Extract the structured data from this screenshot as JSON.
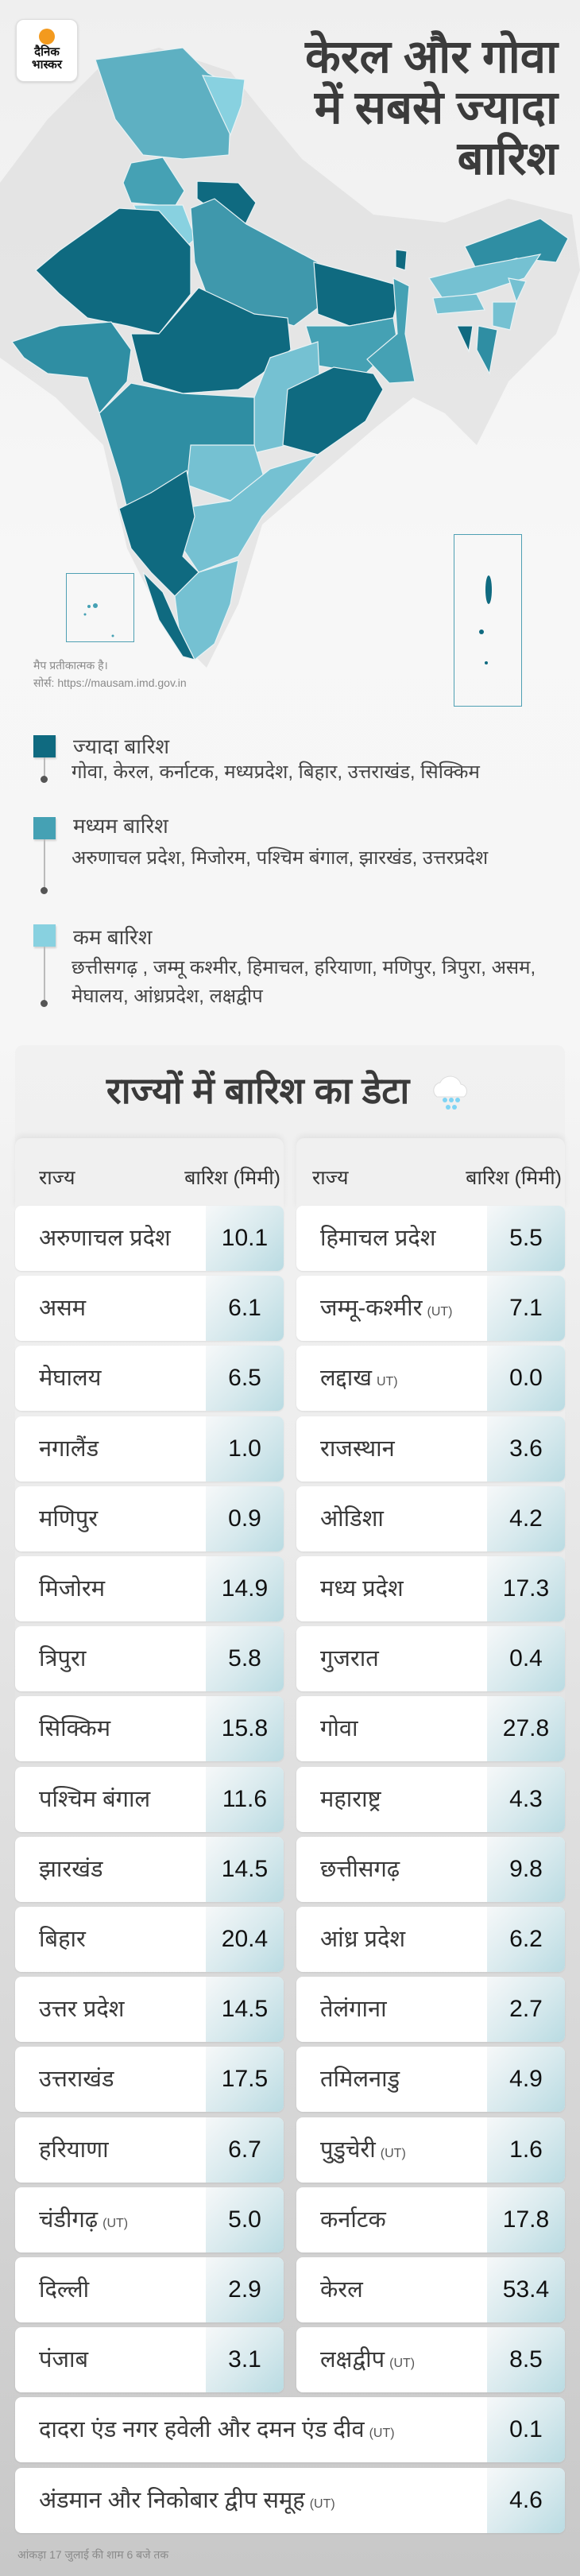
{
  "brand": {
    "line1": "दैनिक",
    "line2": "भास्कर",
    "accent": "#f39a1e"
  },
  "headline": [
    "केरल और गोवा",
    "में सबसे ज्यादा",
    "बारिश"
  ],
  "map": {
    "note": "मैप प्रतीकात्मक है।",
    "source": "सोर्स: https://mausam.imd.gov.in",
    "colors": {
      "high": "#0f6a80",
      "medium": "#45a1b4",
      "low": "#88d1e0"
    }
  },
  "legend": [
    {
      "title": "ज्यादा बारिश",
      "states": "गोवा, केरल, कर्नाटक, मध्यप्रदेश, बिहार, उत्तराखंड,  सिक्किम",
      "color": "#0f6a80"
    },
    {
      "title": "मध्यम बारिश",
      "states": "अरुणाचल प्रदेश,  मिजोरम, पश्चिम बंगाल, झारखंड, उत्तरप्रदेश",
      "color": "#45a1b4"
    },
    {
      "title": "कम बारिश",
      "states": "छत्तीसगढ़ , जम्मू कश्मीर, हिमाचल, हरियाणा, मणिपुर,  त्रिपुरा, असम, मेघालय, आंध्रप्रदेश, लक्षद्वीप",
      "color": "#88d1e0"
    }
  ],
  "table": {
    "title": "राज्यों में बारिश का डेटा",
    "icon": "rain-cloud-icon",
    "col_state": "राज्य",
    "col_rain": "बारिश (मिमी)",
    "left": [
      {
        "name": "अरुणाचल प्रदेश",
        "value": "10.1"
      },
      {
        "name": "असम",
        "value": "6.1"
      },
      {
        "name": "मेघालय",
        "value": "6.5"
      },
      {
        "name": "नगालैंड",
        "value": "1.0"
      },
      {
        "name": "मणिपुर",
        "value": "0.9"
      },
      {
        "name": "मिजोरम",
        "value": "14.9"
      },
      {
        "name": "त्रिपुरा",
        "value": "5.8"
      },
      {
        "name": "सिक्किम",
        "value": "15.8"
      },
      {
        "name": "पश्चिम बंगाल",
        "value": "11.6"
      },
      {
        "name": "झारखंड",
        "value": "14.5"
      },
      {
        "name": "बिहार",
        "value": "20.4"
      },
      {
        "name": "उत्तर प्रदेश",
        "value": "14.5"
      },
      {
        "name": "उत्तराखंड",
        "value": "17.5"
      },
      {
        "name": "हरियाणा",
        "value": "6.7"
      },
      {
        "name": "चंडीगढ़",
        "suffix": "(UT)",
        "value": "5.0"
      },
      {
        "name": "दिल्ली",
        "value": "2.9"
      },
      {
        "name": "पंजाब",
        "value": "3.1"
      }
    ],
    "right": [
      {
        "name": "हिमाचल प्रदेश",
        "value": "5.5"
      },
      {
        "name": "जम्मू-कश्मीर",
        "suffix": "(UT)",
        "value": "7.1"
      },
      {
        "name": "लद्दाख",
        "suffix": "UT)",
        "value": "0.0"
      },
      {
        "name": "राजस्थान",
        "value": "3.6"
      },
      {
        "name": "ओडिशा",
        "value": "4.2"
      },
      {
        "name": "मध्य प्रदेश",
        "value": "17.3"
      },
      {
        "name": "गुजरात",
        "value": "0.4"
      },
      {
        "name": "गोवा",
        "value": "27.8"
      },
      {
        "name": "महाराष्ट्र",
        "value": "4.3"
      },
      {
        "name": "छत्तीसगढ़",
        "value": "9.8"
      },
      {
        "name": "आंध्र प्रदेश",
        "value": "6.2"
      },
      {
        "name": "तेलंगाना",
        "value": "2.7"
      },
      {
        "name": "तमिलनाडु",
        "value": "4.9"
      },
      {
        "name": "पुडुचेरी",
        "suffix": "(UT)",
        "value": "1.6"
      },
      {
        "name": "कर्नाटक",
        "value": "17.8"
      },
      {
        "name": "केरल",
        "value": "53.4"
      },
      {
        "name": "लक्षद्वीप",
        "suffix": "(UT)",
        "value": "8.5"
      }
    ],
    "full": [
      {
        "name": "दादरा एंड नगर हवेली और दमन एंड दीव",
        "suffix": "(UT)",
        "value": "0.1"
      },
      {
        "name": "अंडमान और निकोबार द्वीप समूह",
        "suffix": "(UT)",
        "value": "4.6"
      }
    ]
  },
  "footer": "आंकड़ा 17 जुलाई की शाम 6 बजे तक"
}
